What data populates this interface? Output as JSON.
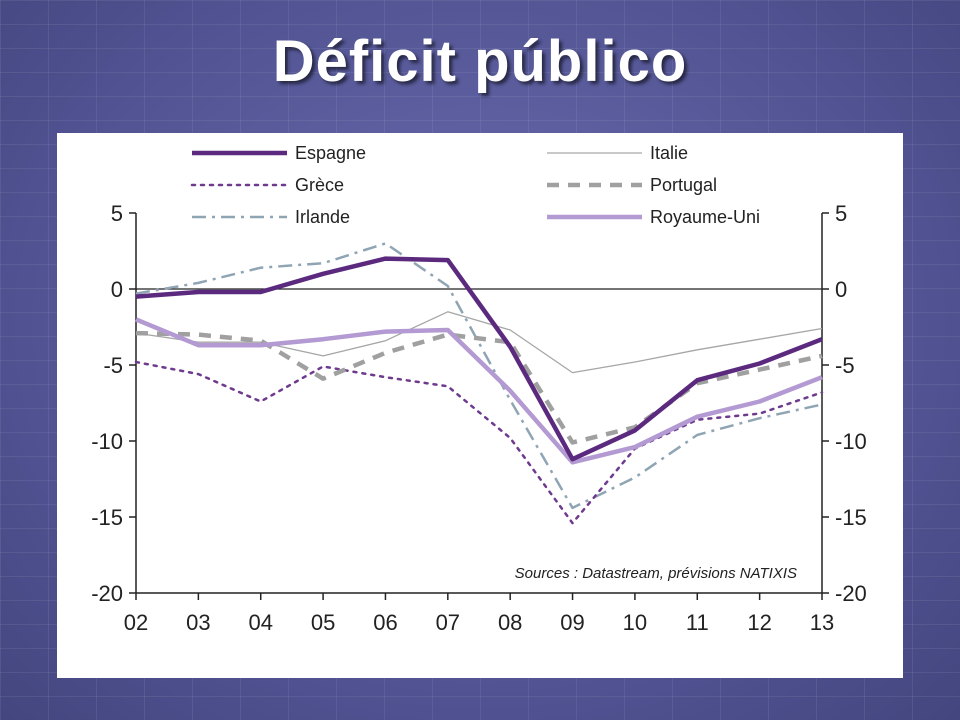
{
  "slide": {
    "title": "Déficit público"
  },
  "chart_data": {
    "type": "line",
    "x": [
      "02",
      "03",
      "04",
      "05",
      "06",
      "07",
      "08",
      "09",
      "10",
      "11",
      "12",
      "13"
    ],
    "ylim": [
      -20,
      5
    ],
    "y_ticks": [
      "5",
      "0",
      "-5",
      "-10",
      "-15",
      "-20"
    ],
    "y_tick_values": [
      5,
      0,
      -5,
      -10,
      -15,
      -20
    ],
    "zero_line": true,
    "grid": false,
    "legend_position": "top",
    "series": [
      {
        "name": "Espagne",
        "color": "#5b2a7e",
        "style": "solid-thick",
        "values": [
          -0.5,
          -0.2,
          -0.2,
          1.0,
          2.0,
          1.9,
          -3.8,
          -11.2,
          -9.3,
          -6.0,
          -4.9,
          -3.3
        ]
      },
      {
        "name": "Italie",
        "color": "#a6a6a6",
        "style": "solid-thin",
        "values": [
          -2.9,
          -3.5,
          -3.5,
          -4.4,
          -3.4,
          -1.5,
          -2.7,
          -5.5,
          -4.8,
          -4.0,
          -3.3,
          -2.6
        ]
      },
      {
        "name": "Grèce",
        "color": "#6e3a8e",
        "style": "dotted",
        "values": [
          -4.8,
          -5.6,
          -7.4,
          -5.1,
          -5.8,
          -6.4,
          -9.8,
          -15.4,
          -10.5,
          -8.6,
          -8.2,
          -6.8
        ]
      },
      {
        "name": "Portugal",
        "color": "#a0a0a0",
        "style": "dashed",
        "values": [
          -2.9,
          -3.0,
          -3.4,
          -5.9,
          -4.2,
          -3.0,
          -3.5,
          -10.1,
          -9.1,
          -6.2,
          -5.3,
          -4.4
        ]
      },
      {
        "name": "Irlande",
        "color": "#8fa5b4",
        "style": "dash-dot",
        "values": [
          -0.3,
          0.4,
          1.4,
          1.7,
          3.0,
          0.2,
          -7.3,
          -14.4,
          -12.4,
          -9.6,
          -8.5,
          -7.6
        ]
      },
      {
        "name": "Royaume-Uni",
        "color": "#b39ad2",
        "style": "solid-medium",
        "values": [
          -2.0,
          -3.7,
          -3.7,
          -3.3,
          -2.8,
          -2.7,
          -6.7,
          -11.4,
          -10.4,
          -8.4,
          -7.4,
          -5.8
        ]
      }
    ],
    "source": "Sources : Datastream, prévisions NATIXIS"
  }
}
